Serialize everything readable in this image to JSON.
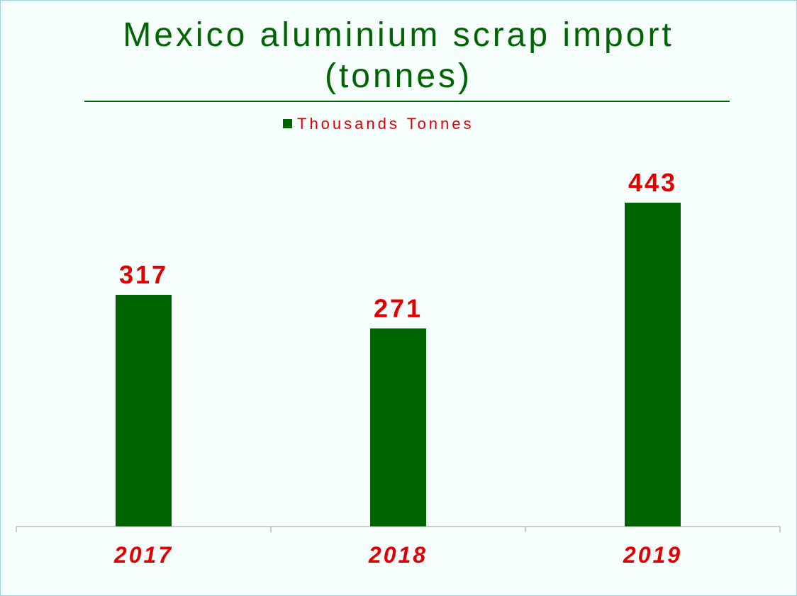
{
  "colors": {
    "title": "#006400",
    "bar": "#006400",
    "label": "#e00000",
    "axis": "#a0a0a0",
    "title_rule": "#006400"
  },
  "chart_data": {
    "type": "bar",
    "title_lines": [
      "Mexico aluminium scrap import",
      "(tonnes)"
    ],
    "legend_position": "top-center",
    "categories": [
      "2017",
      "2018",
      "2019"
    ],
    "series": [
      {
        "name": "Thousands Tonnes",
        "values": [
          317,
          271,
          443
        ]
      }
    ],
    "ylim": [
      0,
      500
    ],
    "grid": false,
    "data_labels": true
  }
}
